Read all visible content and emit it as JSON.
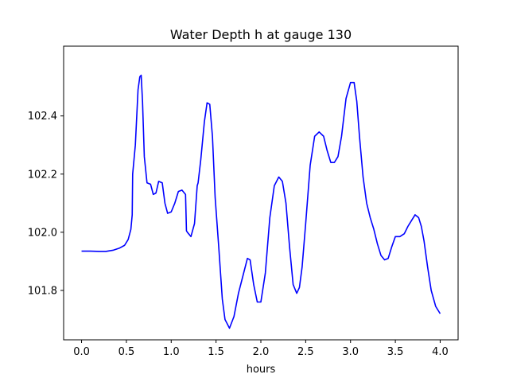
{
  "chart_data": {
    "type": "line",
    "title": "Water Depth h at gauge 130",
    "xlabel": "hours",
    "ylabel": "",
    "xlim": [
      -0.2,
      4.2
    ],
    "ylim": [
      101.63,
      102.64
    ],
    "xticks": [
      0.0,
      0.5,
      1.0,
      1.5,
      2.0,
      2.5,
      3.0,
      3.5,
      4.0
    ],
    "xtick_labels": [
      "0.0",
      "0.5",
      "1.0",
      "1.5",
      "2.0",
      "2.5",
      "3.0",
      "3.5",
      "4.0"
    ],
    "yticks": [
      101.8,
      102.0,
      102.2,
      102.4
    ],
    "ytick_labels": [
      "101.8",
      "102.0",
      "102.2",
      "102.4"
    ],
    "grid": false,
    "series": [
      {
        "color": "#0000ff",
        "x": [
          0.0,
          0.1,
          0.2,
          0.27,
          0.35,
          0.42,
          0.48,
          0.52,
          0.55,
          0.565,
          0.57,
          0.6,
          0.63,
          0.65,
          0.665,
          0.68,
          0.7,
          0.73,
          0.77,
          0.8,
          0.83,
          0.86,
          0.9,
          0.93,
          0.96,
          1.0,
          1.04,
          1.08,
          1.12,
          1.16,
          1.17,
          1.18,
          1.22,
          1.26,
          1.29,
          1.3,
          1.33,
          1.37,
          1.4,
          1.43,
          1.46,
          1.49,
          1.53,
          1.57,
          1.6,
          1.65,
          1.7,
          1.75,
          1.8,
          1.85,
          1.88,
          1.92,
          1.96,
          2.0,
          2.05,
          2.1,
          2.15,
          2.2,
          2.24,
          2.28,
          2.32,
          2.36,
          2.4,
          2.43,
          2.46,
          2.5,
          2.55,
          2.6,
          2.65,
          2.7,
          2.74,
          2.78,
          2.82,
          2.86,
          2.9,
          2.95,
          3.0,
          3.04,
          3.07,
          3.1,
          3.14,
          3.18,
          3.22,
          3.26,
          3.3,
          3.34,
          3.38,
          3.42,
          3.46,
          3.5,
          3.55,
          3.6,
          3.64,
          3.68,
          3.72,
          3.76,
          3.79,
          3.82,
          3.86,
          3.9,
          3.95,
          4.0
        ],
        "y": [
          101.935,
          101.935,
          101.934,
          101.934,
          101.938,
          101.945,
          101.955,
          101.975,
          102.01,
          102.06,
          102.2,
          102.3,
          102.49,
          102.535,
          102.54,
          102.45,
          102.26,
          102.17,
          102.165,
          102.13,
          102.135,
          102.175,
          102.17,
          102.1,
          102.065,
          102.07,
          102.1,
          102.14,
          102.145,
          102.13,
          102.005,
          102.0,
          101.985,
          102.03,
          102.16,
          102.17,
          102.25,
          102.38,
          102.445,
          102.44,
          102.33,
          102.12,
          101.95,
          101.77,
          101.7,
          101.67,
          101.71,
          101.79,
          101.85,
          101.91,
          101.905,
          101.82,
          101.76,
          101.76,
          101.86,
          102.05,
          102.16,
          102.19,
          102.175,
          102.1,
          101.95,
          101.82,
          101.79,
          101.81,
          101.88,
          102.03,
          102.23,
          102.33,
          102.345,
          102.33,
          102.28,
          102.24,
          102.24,
          102.26,
          102.33,
          102.46,
          102.515,
          102.515,
          102.45,
          102.33,
          102.19,
          102.1,
          102.05,
          102.01,
          101.96,
          101.92,
          101.905,
          101.91,
          101.95,
          101.985,
          101.985,
          101.995,
          102.02,
          102.04,
          102.06,
          102.05,
          102.02,
          101.97,
          101.88,
          101.8,
          101.745,
          101.72
        ]
      }
    ]
  }
}
